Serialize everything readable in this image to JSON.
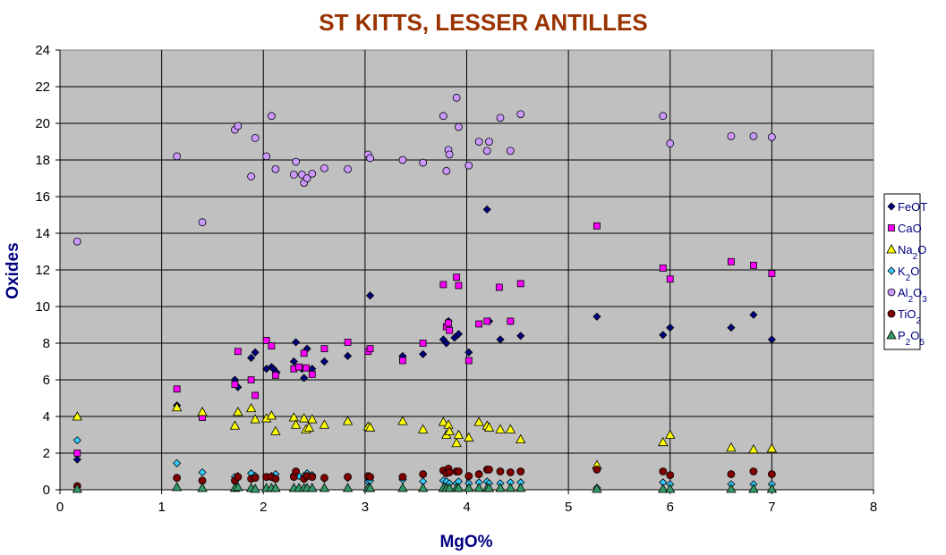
{
  "chart_data": {
    "type": "scatter",
    "title": "ST KITTS, LESSER ANTILLES",
    "xlabel": "MgO%",
    "ylabel": "Oxides",
    "xlim": [
      0,
      8
    ],
    "ylim": [
      0,
      24
    ],
    "xticks": [
      0,
      1,
      2,
      3,
      4,
      5,
      6,
      7,
      8
    ],
    "yticks": [
      0,
      2,
      4,
      6,
      8,
      10,
      12,
      14,
      16,
      18,
      20,
      22,
      24
    ],
    "grid": true,
    "plot_background": "#C0C0C0",
    "legend_position": "right",
    "series": [
      {
        "name": "FeOT",
        "name_base": "FeOT",
        "name_sub": "",
        "marker": "diamond",
        "color": "#000080",
        "points": [
          [
            0.17,
            1.65
          ],
          [
            1.15,
            4.6
          ],
          [
            1.72,
            6.0
          ],
          [
            1.75,
            5.6
          ],
          [
            1.88,
            7.2
          ],
          [
            1.92,
            7.5
          ],
          [
            2.03,
            6.6
          ],
          [
            2.08,
            6.7
          ],
          [
            2.1,
            6.6
          ],
          [
            2.13,
            6.4
          ],
          [
            2.3,
            7.0
          ],
          [
            2.32,
            8.05
          ],
          [
            2.38,
            6.6
          ],
          [
            2.4,
            6.1
          ],
          [
            2.43,
            7.7
          ],
          [
            2.48,
            6.6
          ],
          [
            2.6,
            7.0
          ],
          [
            2.83,
            7.3
          ],
          [
            3.05,
            10.6
          ],
          [
            3.37,
            7.3
          ],
          [
            3.57,
            7.4
          ],
          [
            3.77,
            8.2
          ],
          [
            3.8,
            8.0
          ],
          [
            3.82,
            9.2
          ],
          [
            3.88,
            8.3
          ],
          [
            3.92,
            8.5
          ],
          [
            4.02,
            7.5
          ],
          [
            4.2,
            15.3
          ],
          [
            4.22,
            9.2
          ],
          [
            4.33,
            8.2
          ],
          [
            4.43,
            9.2
          ],
          [
            4.53,
            8.4
          ],
          [
            5.28,
            9.45
          ],
          [
            5.93,
            8.45
          ],
          [
            6.0,
            8.85
          ],
          [
            6.6,
            8.85
          ],
          [
            6.82,
            9.55
          ],
          [
            7.0,
            8.2
          ]
        ]
      },
      {
        "name": "CaO",
        "name_base": "CaO",
        "name_sub": "",
        "marker": "square",
        "color": "#FF00FF",
        "points": [
          [
            0.17,
            2.0
          ],
          [
            1.15,
            5.5
          ],
          [
            1.4,
            3.95
          ],
          [
            1.72,
            5.75
          ],
          [
            1.75,
            7.55
          ],
          [
            1.88,
            6.0
          ],
          [
            1.92,
            5.15
          ],
          [
            2.03,
            8.15
          ],
          [
            2.08,
            7.85
          ],
          [
            2.12,
            6.25
          ],
          [
            2.3,
            6.6
          ],
          [
            2.35,
            6.7
          ],
          [
            2.4,
            7.45
          ],
          [
            2.42,
            6.65
          ],
          [
            2.48,
            6.3
          ],
          [
            2.6,
            7.7
          ],
          [
            2.83,
            8.05
          ],
          [
            3.03,
            7.55
          ],
          [
            3.05,
            7.7
          ],
          [
            3.37,
            7.05
          ],
          [
            3.57,
            8.0
          ],
          [
            3.77,
            11.2
          ],
          [
            3.8,
            8.9
          ],
          [
            3.82,
            9.1
          ],
          [
            3.83,
            8.7
          ],
          [
            3.9,
            11.6
          ],
          [
            3.92,
            11.15
          ],
          [
            4.02,
            7.05
          ],
          [
            4.12,
            9.05
          ],
          [
            4.2,
            9.2
          ],
          [
            4.32,
            11.05
          ],
          [
            4.43,
            9.2
          ],
          [
            4.53,
            11.25
          ],
          [
            5.28,
            14.4
          ],
          [
            5.93,
            12.1
          ],
          [
            6.0,
            11.5
          ],
          [
            6.6,
            12.45
          ],
          [
            6.82,
            12.25
          ],
          [
            7.0,
            11.8
          ]
        ]
      },
      {
        "name": "Na2O",
        "name_base": "Na",
        "name_sub": "2",
        "name_rest": "O",
        "marker": "triangle",
        "color": "#FFFF00",
        "points": [
          [
            0.17,
            4.0
          ],
          [
            1.15,
            4.5
          ],
          [
            1.4,
            4.25
          ],
          [
            1.72,
            3.5
          ],
          [
            1.75,
            4.25
          ],
          [
            1.88,
            4.45
          ],
          [
            1.92,
            3.85
          ],
          [
            2.03,
            3.9
          ],
          [
            2.08,
            4.05
          ],
          [
            2.12,
            3.2
          ],
          [
            2.3,
            3.95
          ],
          [
            2.32,
            3.55
          ],
          [
            2.4,
            3.9
          ],
          [
            2.42,
            3.3
          ],
          [
            2.45,
            3.4
          ],
          [
            2.48,
            3.85
          ],
          [
            2.6,
            3.55
          ],
          [
            2.83,
            3.75
          ],
          [
            3.03,
            3.45
          ],
          [
            3.05,
            3.4
          ],
          [
            3.37,
            3.75
          ],
          [
            3.57,
            3.3
          ],
          [
            3.77,
            3.7
          ],
          [
            3.8,
            3.0
          ],
          [
            3.82,
            3.55
          ],
          [
            3.83,
            3.2
          ],
          [
            3.9,
            2.55
          ],
          [
            3.92,
            3.0
          ],
          [
            4.02,
            2.85
          ],
          [
            4.12,
            3.7
          ],
          [
            4.2,
            3.5
          ],
          [
            4.22,
            3.4
          ],
          [
            4.33,
            3.3
          ],
          [
            4.43,
            3.3
          ],
          [
            4.53,
            2.75
          ],
          [
            5.28,
            1.35
          ],
          [
            5.93,
            2.6
          ],
          [
            6.0,
            3.0
          ],
          [
            6.6,
            2.3
          ],
          [
            6.82,
            2.2
          ],
          [
            7.0,
            2.25
          ]
        ]
      },
      {
        "name": "K2O",
        "name_base": "K",
        "name_sub": "2",
        "name_rest": "O",
        "marker": "diamond",
        "color": "#33CCFF",
        "points": [
          [
            0.17,
            2.7
          ],
          [
            1.15,
            1.45
          ],
          [
            1.4,
            0.95
          ],
          [
            1.72,
            0.7
          ],
          [
            1.75,
            0.75
          ],
          [
            1.88,
            0.9
          ],
          [
            1.92,
            0.75
          ],
          [
            2.03,
            0.7
          ],
          [
            2.08,
            0.75
          ],
          [
            2.12,
            0.85
          ],
          [
            2.3,
            0.8
          ],
          [
            2.35,
            0.75
          ],
          [
            2.4,
            0.75
          ],
          [
            2.43,
            0.9
          ],
          [
            2.48,
            0.8
          ],
          [
            2.6,
            0.6
          ],
          [
            2.83,
            0.65
          ],
          [
            3.03,
            0.45
          ],
          [
            3.05,
            0.5
          ],
          [
            3.37,
            0.55
          ],
          [
            3.57,
            0.45
          ],
          [
            3.77,
            0.5
          ],
          [
            3.8,
            0.45
          ],
          [
            3.83,
            0.35
          ],
          [
            3.9,
            0.35
          ],
          [
            3.92,
            0.45
          ],
          [
            4.02,
            0.35
          ],
          [
            4.12,
            0.4
          ],
          [
            4.2,
            0.45
          ],
          [
            4.22,
            0.35
          ],
          [
            4.33,
            0.35
          ],
          [
            4.43,
            0.4
          ],
          [
            4.53,
            0.4
          ],
          [
            5.28,
            0.1
          ],
          [
            5.93,
            0.4
          ],
          [
            6.0,
            0.3
          ],
          [
            6.6,
            0.3
          ],
          [
            6.82,
            0.3
          ],
          [
            7.0,
            0.3
          ]
        ]
      },
      {
        "name": "Al2O3",
        "name_base": "Al",
        "name_sub": "2",
        "name_rest": "O",
        "name_sub2": "3",
        "marker": "circle",
        "color": "#CC99FF",
        "points": [
          [
            0.17,
            13.55
          ],
          [
            1.15,
            18.2
          ],
          [
            1.4,
            14.6
          ],
          [
            1.72,
            19.65
          ],
          [
            1.75,
            19.85
          ],
          [
            1.88,
            17.1
          ],
          [
            1.92,
            19.2
          ],
          [
            2.03,
            18.2
          ],
          [
            2.08,
            20.4
          ],
          [
            2.12,
            17.5
          ],
          [
            2.3,
            17.2
          ],
          [
            2.32,
            17.9
          ],
          [
            2.38,
            17.2
          ],
          [
            2.4,
            16.75
          ],
          [
            2.43,
            17.0
          ],
          [
            2.48,
            17.25
          ],
          [
            2.6,
            17.55
          ],
          [
            2.83,
            17.5
          ],
          [
            3.03,
            18.3
          ],
          [
            3.05,
            18.1
          ],
          [
            3.37,
            18.0
          ],
          [
            3.57,
            17.85
          ],
          [
            3.77,
            20.4
          ],
          [
            3.8,
            17.4
          ],
          [
            3.82,
            18.55
          ],
          [
            3.83,
            18.3
          ],
          [
            3.9,
            21.4
          ],
          [
            3.92,
            19.8
          ],
          [
            4.02,
            17.7
          ],
          [
            4.12,
            19.0
          ],
          [
            4.2,
            18.5
          ],
          [
            4.22,
            19.0
          ],
          [
            4.33,
            20.3
          ],
          [
            4.43,
            18.5
          ],
          [
            4.53,
            20.5
          ],
          [
            5.93,
            20.4
          ],
          [
            6.0,
            18.9
          ],
          [
            6.6,
            19.3
          ],
          [
            6.82,
            19.3
          ],
          [
            7.0,
            19.25
          ]
        ]
      },
      {
        "name": "TiO2",
        "name_base": "TiO",
        "name_sub": "2",
        "marker": "circle",
        "color": "#800000",
        "points": [
          [
            0.17,
            0.2
          ],
          [
            1.15,
            0.65
          ],
          [
            1.4,
            0.5
          ],
          [
            1.72,
            0.5
          ],
          [
            1.75,
            0.7
          ],
          [
            1.88,
            0.6
          ],
          [
            1.92,
            0.65
          ],
          [
            2.03,
            0.7
          ],
          [
            2.08,
            0.7
          ],
          [
            2.12,
            0.6
          ],
          [
            2.3,
            0.7
          ],
          [
            2.32,
            1.0
          ],
          [
            2.4,
            0.6
          ],
          [
            2.43,
            0.75
          ],
          [
            2.48,
            0.7
          ],
          [
            2.6,
            0.65
          ],
          [
            2.83,
            0.7
          ],
          [
            3.03,
            0.75
          ],
          [
            3.05,
            0.7
          ],
          [
            3.37,
            0.7
          ],
          [
            3.57,
            0.85
          ],
          [
            3.77,
            1.05
          ],
          [
            3.8,
            0.9
          ],
          [
            3.82,
            1.15
          ],
          [
            3.83,
            0.95
          ],
          [
            3.9,
            1.0
          ],
          [
            3.92,
            1.0
          ],
          [
            4.02,
            0.75
          ],
          [
            4.12,
            0.85
          ],
          [
            4.2,
            1.1
          ],
          [
            4.22,
            1.1
          ],
          [
            4.33,
            1.0
          ],
          [
            4.43,
            0.95
          ],
          [
            4.53,
            1.0
          ],
          [
            5.28,
            1.1
          ],
          [
            5.93,
            1.0
          ],
          [
            6.0,
            0.8
          ],
          [
            6.6,
            0.85
          ],
          [
            6.82,
            1.0
          ],
          [
            7.0,
            0.85
          ]
        ]
      },
      {
        "name": "P2O5",
        "name_base": "P",
        "name_sub": "2",
        "name_rest": "O",
        "name_sub2": "5",
        "marker": "triangle",
        "color": "#339966",
        "points": [
          [
            0.17,
            0.05
          ],
          [
            1.15,
            0.15
          ],
          [
            1.4,
            0.1
          ],
          [
            1.72,
            0.1
          ],
          [
            1.75,
            0.15
          ],
          [
            1.88,
            0.1
          ],
          [
            1.92,
            0.05
          ],
          [
            2.03,
            0.1
          ],
          [
            2.08,
            0.1
          ],
          [
            2.12,
            0.1
          ],
          [
            2.3,
            0.1
          ],
          [
            2.35,
            0.1
          ],
          [
            2.4,
            0.1
          ],
          [
            2.43,
            0.1
          ],
          [
            2.48,
            0.1
          ],
          [
            2.6,
            0.1
          ],
          [
            2.83,
            0.1
          ],
          [
            3.03,
            0.1
          ],
          [
            3.05,
            0.1
          ],
          [
            3.37,
            0.1
          ],
          [
            3.57,
            0.1
          ],
          [
            3.77,
            0.1
          ],
          [
            3.8,
            0.1
          ],
          [
            3.83,
            0.1
          ],
          [
            3.9,
            0.1
          ],
          [
            3.92,
            0.1
          ],
          [
            4.02,
            0.1
          ],
          [
            4.12,
            0.1
          ],
          [
            4.2,
            0.1
          ],
          [
            4.22,
            0.1
          ],
          [
            4.33,
            0.1
          ],
          [
            4.43,
            0.1
          ],
          [
            4.53,
            0.1
          ],
          [
            5.28,
            0.05
          ],
          [
            5.93,
            0.05
          ],
          [
            6.0,
            0.05
          ],
          [
            6.6,
            0.05
          ],
          [
            6.82,
            0.05
          ],
          [
            7.0,
            0.05
          ]
        ]
      }
    ]
  }
}
